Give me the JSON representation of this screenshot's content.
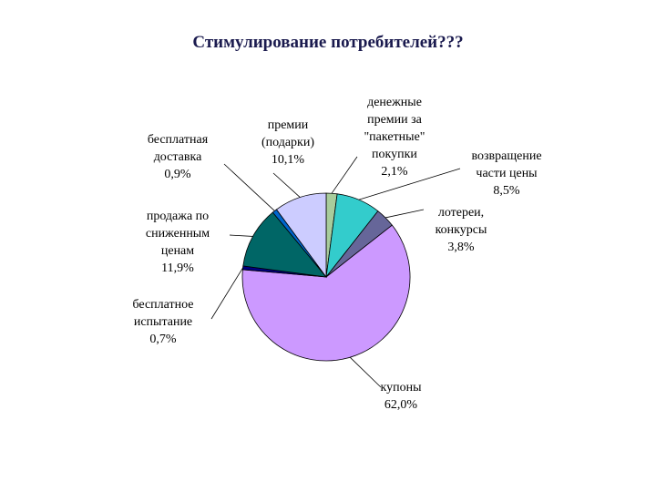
{
  "page": {
    "title": "Стимулирование потребителей???"
  },
  "chart_data": {
    "type": "pie",
    "title": "Стимулирование потребителей???",
    "slices": [
      {
        "label": "денежные\nпремии за\n\"пакетные\"\nпокупки\n2,1%",
        "value": 2.1,
        "color": "#a8cc9c"
      },
      {
        "label": "возвращение\nчасти цены\n8,5%",
        "value": 8.5,
        "color": "#33cccc"
      },
      {
        "label": "лотереи,\nконкурсы\n3,8%",
        "value": 3.8,
        "color": "#666699"
      },
      {
        "label": "купоны\n62,0%",
        "value": 62.0,
        "color": "#cc99ff"
      },
      {
        "label": "бесплатное\nиспытание\n0,7%",
        "value": 0.7,
        "color": "#000080"
      },
      {
        "label": "продажа по\nсниженным\nценам\n11,9%",
        "value": 11.9,
        "color": "#006666"
      },
      {
        "label": "бесплатная\nдоставка\n0,9%",
        "value": 0.9,
        "color": "#0066cc"
      },
      {
        "label": "премии\n(подарки)\n10,1%",
        "value": 10.1,
        "color": "#ccccff"
      }
    ],
    "legend": "none",
    "grid": false
  }
}
